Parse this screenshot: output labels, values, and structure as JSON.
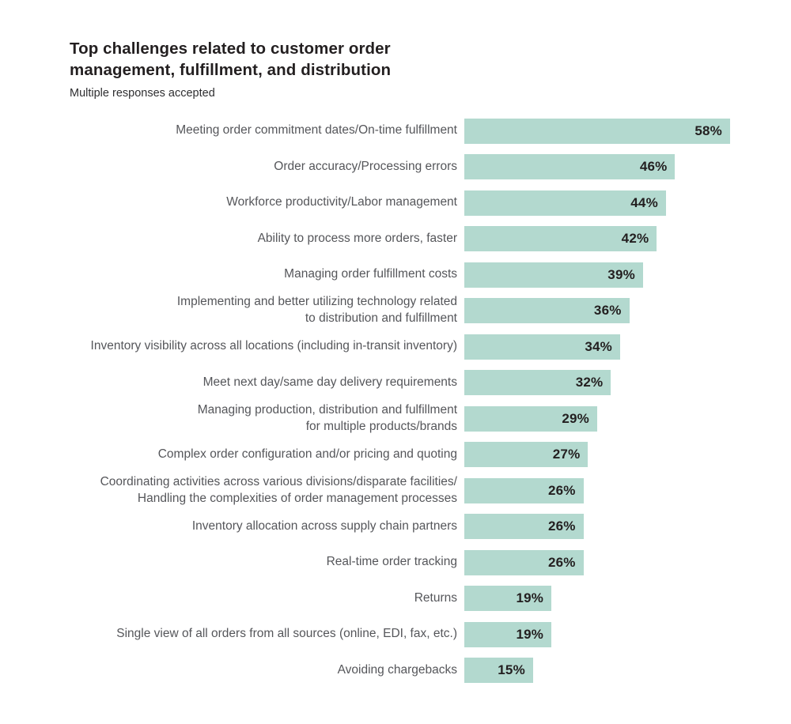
{
  "page": {
    "background": "#ffffff"
  },
  "header": {
    "title": "Top challenges related to customer order\nmanagement, fulfillment, and distribution",
    "subtitle": "Multiple responses accepted"
  },
  "chart_data": {
    "type": "bar",
    "orientation": "horizontal",
    "title": "Top challenges related to customer order management, fulfillment, and distribution",
    "subtitle": "Multiple responses accepted",
    "xlabel": "",
    "ylabel": "",
    "xlim": [
      0,
      58
    ],
    "grid": false,
    "legend": false,
    "value_label_position": "inside-right",
    "value_suffix": "%",
    "bar_color": "#b3d9cf",
    "label_color": "#55565a",
    "value_color": "#231f20",
    "categories": [
      "Meeting order commitment dates/On-time fulfillment",
      "Order accuracy/Processing errors",
      "Workforce productivity/Labor management",
      "Ability to process more orders, faster",
      "Managing order fulfillment costs",
      "Implementing and better utilizing technology related\nto distribution and fulfillment",
      "Inventory visibility across all locations (including in-transit inventory)",
      "Meet next day/same day delivery requirements",
      "Managing production, distribution and fulfillment\nfor multiple products/brands",
      "Complex order configuration and/or pricing and quoting",
      "Coordinating activities across various divisions/disparate facilities/\nHandling the complexities of order management processes",
      "Inventory allocation across supply chain partners",
      "Real-time order tracking",
      "Returns",
      "Single view of all orders from all sources (online, EDI, fax, etc.)",
      "Avoiding chargebacks"
    ],
    "values": [
      58,
      46,
      44,
      42,
      39,
      36,
      34,
      32,
      29,
      27,
      26,
      26,
      26,
      19,
      19,
      15
    ]
  }
}
